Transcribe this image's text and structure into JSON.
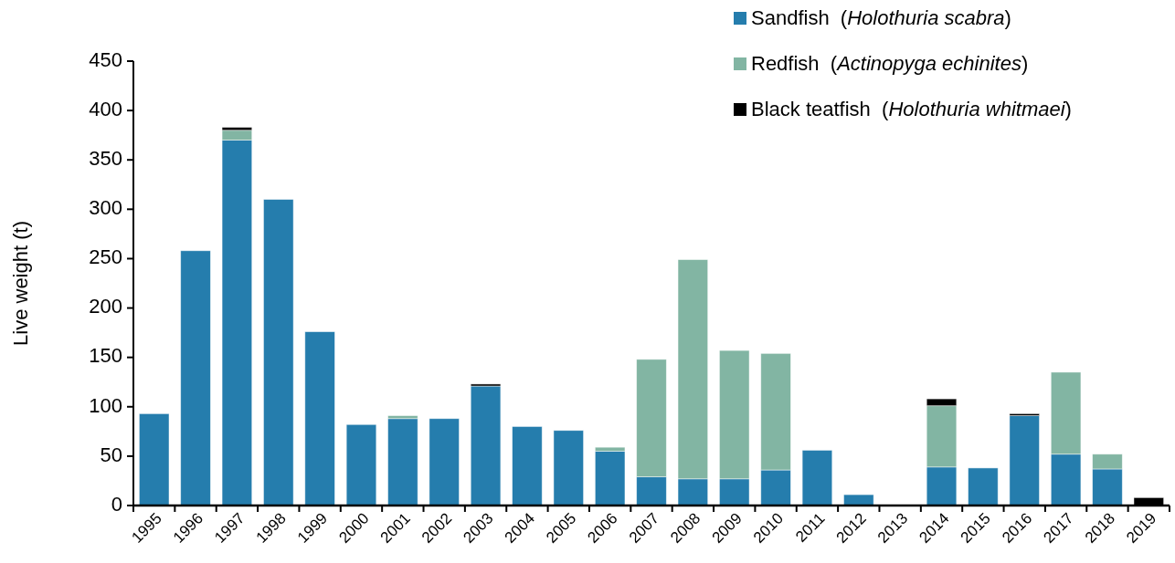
{
  "chart_data": {
    "type": "bar",
    "stacked": true,
    "ylabel": "Live weight (t)",
    "categories": [
      "1995",
      "1996",
      "1997",
      "1998",
      "1999",
      "2000",
      "2001",
      "2002",
      "2003",
      "2004",
      "2005",
      "2006",
      "2007",
      "2008",
      "2009",
      "2010",
      "2011",
      "2012",
      "2013",
      "2014",
      "2015",
      "2016",
      "2017",
      "2018",
      "2019"
    ],
    "series": [
      {
        "name": "Sandfish  (Holothuria scabra)",
        "color": "#257dad",
        "values": [
          93,
          258,
          370,
          310,
          176,
          82,
          88,
          88,
          121,
          80,
          76,
          55,
          29,
          27,
          27,
          36,
          56,
          11,
          null,
          39,
          38,
          91,
          52,
          37,
          null
        ]
      },
      {
        "name": "Redfish  (Actinopyga echinites)",
        "color": "#82b5a3",
        "values": [
          null,
          null,
          10,
          null,
          null,
          null,
          3,
          null,
          null,
          null,
          null,
          4,
          119,
          222,
          130,
          118,
          null,
          null,
          null,
          62,
          null,
          null,
          83,
          15,
          null
        ]
      },
      {
        "name": "Black teatfish  (Holothuria whitmaei)",
        "color": "#000000",
        "values": [
          null,
          null,
          3,
          null,
          null,
          null,
          null,
          null,
          2,
          null,
          null,
          null,
          null,
          null,
          null,
          null,
          null,
          null,
          null,
          7,
          null,
          2,
          null,
          null,
          8
        ]
      }
    ],
    "ylim": [
      0,
      450
    ],
    "yticks": [
      0,
      50,
      100,
      150,
      200,
      250,
      300,
      350,
      400,
      450
    ],
    "grid": false,
    "legend": "top right"
  }
}
